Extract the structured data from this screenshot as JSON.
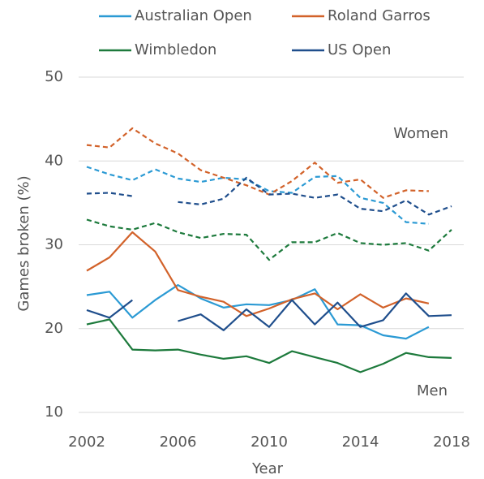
{
  "chart_data": {
    "type": "line",
    "x_label": "Year",
    "y_label": "Games broken (%)",
    "annotations": [
      "Women",
      "Men"
    ],
    "x": [
      2002,
      2003,
      2004,
      2005,
      2006,
      2007,
      2008,
      2009,
      2010,
      2011,
      2012,
      2013,
      2014,
      2015,
      2016,
      2017,
      2018
    ],
    "xlim": [
      2002,
      2018
    ],
    "xticks": [
      2002,
      2006,
      2010,
      2014,
      2018
    ],
    "ylim": [
      10,
      50
    ],
    "yticks": [
      10,
      20,
      30,
      40,
      50
    ],
    "grid": true,
    "legend": "top",
    "series": [
      {
        "name": "Australian Open",
        "color": "#2b9ad4",
        "women": [
          39.3,
          38.4,
          37.7,
          39.0,
          37.9,
          37.5,
          38.0,
          37.8,
          36.4,
          36.2,
          38.1,
          38.2,
          35.6,
          35.0,
          32.7,
          32.5,
          null
        ],
        "men": [
          24.0,
          24.4,
          21.3,
          23.4,
          25.2,
          23.6,
          22.5,
          22.9,
          22.8,
          23.4,
          24.7,
          20.5,
          20.4,
          19.2,
          18.8,
          20.2,
          null
        ]
      },
      {
        "name": "Roland Garros",
        "color": "#d2622a",
        "women": [
          41.9,
          41.6,
          43.9,
          42.1,
          40.9,
          38.9,
          38.0,
          37.1,
          36.0,
          37.6,
          39.8,
          37.4,
          37.8,
          35.6,
          36.5,
          36.4,
          null
        ],
        "men": [
          26.9,
          28.5,
          31.5,
          29.2,
          24.6,
          23.8,
          23.2,
          21.5,
          22.4,
          23.5,
          24.2,
          22.3,
          24.1,
          22.5,
          23.6,
          23.0,
          null
        ]
      },
      {
        "name": "Wimbledon",
        "color": "#1d7a3c",
        "women": [
          33.0,
          32.2,
          31.8,
          32.6,
          31.5,
          30.8,
          31.3,
          31.2,
          28.2,
          30.3,
          30.3,
          31.4,
          30.2,
          30.0,
          30.2,
          29.3,
          31.8
        ],
        "men": [
          20.5,
          21.1,
          17.5,
          17.4,
          17.5,
          16.9,
          16.4,
          16.7,
          15.9,
          17.3,
          16.6,
          15.9,
          14.8,
          15.8,
          17.1,
          16.6,
          16.5
        ]
      },
      {
        "name": "US Open",
        "color": "#1f4e8c",
        "women": [
          36.1,
          36.2,
          35.8,
          null,
          35.1,
          34.8,
          35.5,
          38.0,
          36.0,
          36.1,
          35.6,
          36.0,
          34.3,
          34.0,
          35.3,
          33.6,
          34.6
        ],
        "men": [
          22.2,
          21.3,
          23.4,
          null,
          20.9,
          21.7,
          19.8,
          22.3,
          20.2,
          23.4,
          20.5,
          23.1,
          20.2,
          21.0,
          24.2,
          21.5,
          21.6
        ]
      }
    ]
  }
}
